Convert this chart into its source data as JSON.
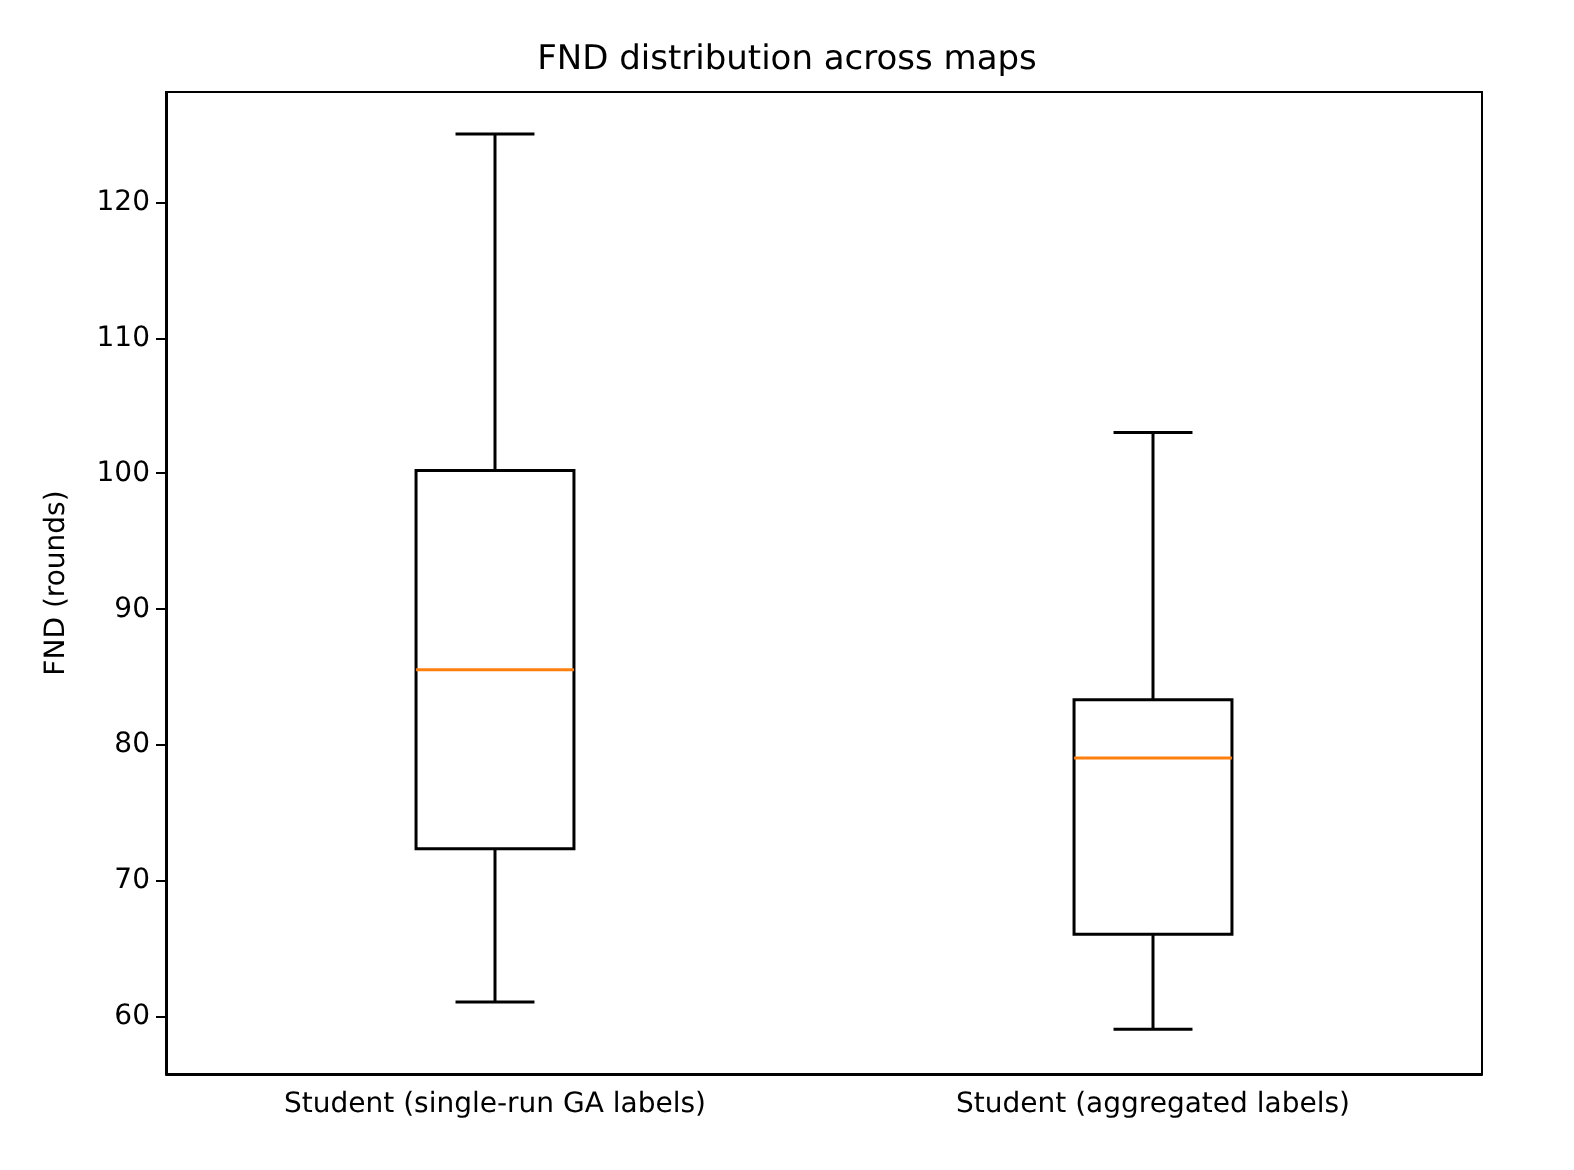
{
  "chart_data": {
    "type": "box",
    "title": "FND distribution across maps",
    "ylabel": "FND (rounds)",
    "categories": [
      "Student (single-run GA labels)",
      "Student (aggregated labels)"
    ],
    "series": [
      {
        "color": "#000000",
        "boxes": [
          {
            "low": 61,
            "q1": 72.3,
            "median": 85.5,
            "q3": 100.2,
            "high": 125
          },
          {
            "low": 59,
            "q1": 66,
            "median": 79,
            "q3": 83.3,
            "high": 103
          }
        ]
      }
    ],
    "ylim": [
      55.7,
      128.1
    ],
    "yticks": [
      60,
      70,
      80,
      90,
      100,
      110,
      120
    ],
    "grid": false
  }
}
